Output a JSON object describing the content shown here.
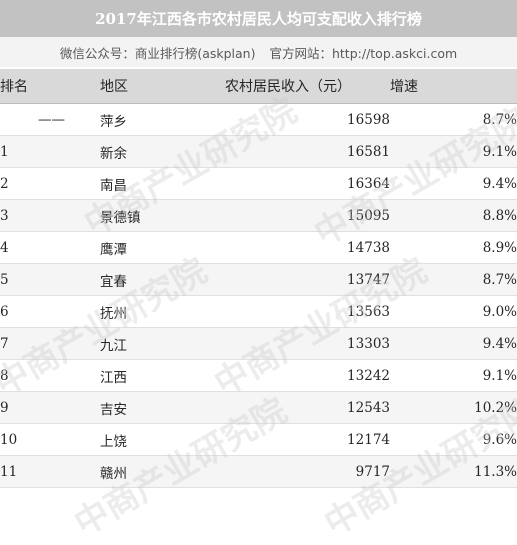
{
  "chart_data": {
    "type": "table",
    "title": "2017年江西各市农村居民人均可支配收入排行榜",
    "subtitle_left": "微信公众号：商业排行榜(askplan)",
    "subtitle_right": "官方网站：http://top.askci.com",
    "columns": [
      "排名",
      "地区",
      "农村居民收入（元）",
      "增速"
    ],
    "rows": [
      {
        "rank": "——",
        "region": "萍乡",
        "income": 16598,
        "growth": "8.7%"
      },
      {
        "rank": "1",
        "region": "新余",
        "income": 16581,
        "growth": "9.1%"
      },
      {
        "rank": "2",
        "region": "南昌",
        "income": 16364,
        "growth": "9.4%"
      },
      {
        "rank": "3",
        "region": "景德镇",
        "income": 15095,
        "growth": "8.8%"
      },
      {
        "rank": "4",
        "region": "鹰潭",
        "income": 14738,
        "growth": "8.9%"
      },
      {
        "rank": "5",
        "region": "宜春",
        "income": 13747,
        "growth": "8.7%"
      },
      {
        "rank": "6",
        "region": "抚州",
        "income": 13563,
        "growth": "9.0%"
      },
      {
        "rank": "7",
        "region": "九江",
        "income": 13303,
        "growth": "9.4%"
      },
      {
        "rank": "8",
        "region": "江西",
        "income": 13242,
        "growth": "9.1%"
      },
      {
        "rank": "9",
        "region": "吉安",
        "income": 12543,
        "growth": "10.2%"
      },
      {
        "rank": "10",
        "region": "上饶",
        "income": 12174,
        "growth": "9.6%"
      },
      {
        "rank": "11",
        "region": "赣州",
        "income": 9717,
        "growth": "11.3%"
      }
    ]
  },
  "watermark_text": "中商产业研究院",
  "colors": {
    "title_bg": "#c2c2c2",
    "subtitle_bg": "#f3f3f3",
    "header_bg": "#d9d9d9",
    "row_alt_bg": "#f5f5f5"
  }
}
